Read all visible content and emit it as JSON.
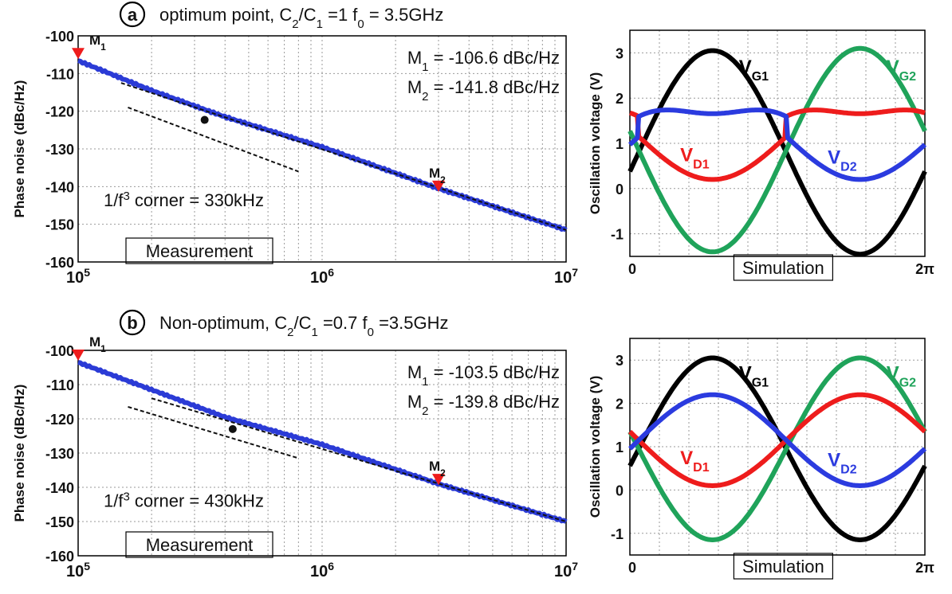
{
  "panels": [
    {
      "tag": "a",
      "header": {
        "pre": "optimum point, C",
        "s1": "2",
        "mid": "/C",
        "s2": "1",
        "post": " =1   f",
        "s3": "0",
        "end": " = 3.5GHz"
      },
      "pn": {
        "ylabel": "Phase noise (dBc/Hz)",
        "yticks": [
          "-100",
          "-110",
          "-120",
          "-130",
          "-140",
          "-150",
          "-160"
        ],
        "m1_line": {
          "pre": "M",
          "sub": "1",
          "post": " = -106.6 dBc/Hz"
        },
        "m2_line": {
          "pre": "M",
          "sub": "2",
          "post": " = -141.8 dBc/Hz"
        },
        "corner": {
          "pre": "1/f",
          "sup": "3",
          "post": " corner = 330kHz"
        },
        "marker1": {
          "pre": "M",
          "sub": "1"
        },
        "marker2": {
          "pre": "M",
          "sub": "2"
        },
        "box_label": "Measurement"
      },
      "osc": {
        "ylabel": "Oscillation voltage (V)",
        "yticks": [
          "3",
          "2",
          "1",
          "0",
          "-1"
        ],
        "xticks": [
          "0",
          "2π"
        ],
        "box_label": "Simulation",
        "labels": {
          "vg1": {
            "pre": "V",
            "sub": "G1"
          },
          "vg2": {
            "pre": "V",
            "sub": "G2"
          },
          "vd1": {
            "pre": "V",
            "sub": "D1"
          },
          "vd2": {
            "pre": "V",
            "sub": "D2"
          }
        }
      }
    },
    {
      "tag": "b",
      "header": {
        "pre": "Non-optimum, C",
        "s1": "2",
        "mid": "/C",
        "s2": "1",
        "post": " =0.7  f",
        "s3": "0",
        "end": " =3.5GHz"
      },
      "pn": {
        "ylabel": "Phase noise (dBc/Hz)",
        "yticks": [
          "-100",
          "-110",
          "-120",
          "-130",
          "-140",
          "-150",
          "-160"
        ],
        "m1_line": {
          "pre": "M",
          "sub": "1",
          "post": " = -103.5 dBc/Hz"
        },
        "m2_line": {
          "pre": "M",
          "sub": "2",
          "post": " = -139.8 dBc/Hz"
        },
        "corner": {
          "pre": "1/f",
          "sup": "3",
          "post": " corner = 430kHz"
        },
        "marker1": {
          "pre": "M",
          "sub": "1"
        },
        "marker2": {
          "pre": "M",
          "sub": "2"
        },
        "box_label": "Measurement"
      },
      "osc": {
        "ylabel": "Oscillation voltage (V)",
        "yticks": [
          "3",
          "2",
          "1",
          "0",
          "-1"
        ],
        "xticks": [
          "0",
          "2π"
        ],
        "box_label": "Simulation",
        "labels": {
          "vg1": {
            "pre": "V",
            "sub": "G1"
          },
          "vg2": {
            "pre": "V",
            "sub": "G2"
          },
          "vd1": {
            "pre": "V",
            "sub": "D1"
          },
          "vd2": {
            "pre": "V",
            "sub": "D2"
          }
        }
      }
    }
  ],
  "colors": {
    "measured": "#2b3bd6",
    "fit": "#111111",
    "marker": "#ee1c1c",
    "vg1": "#000000",
    "vg2": "#1fa35a",
    "vd1": "#ee1c1c",
    "vd2": "#2b3bdf"
  },
  "chart_data": [
    {
      "type": "line",
      "x_scale": "log",
      "xlim": [
        100000,
        10000000
      ],
      "ylim": [
        -160,
        -100
      ],
      "xtick_labels": [
        {
          "base": "10",
          "exp": "5"
        },
        {
          "base": "10",
          "exp": "6"
        },
        {
          "base": "10",
          "exp": "7"
        }
      ],
      "measured": {
        "x": [
          100000,
          200000,
          400000,
          1000000,
          3000000,
          10000000
        ],
        "y": [
          -106.6,
          -114.5,
          -121.5,
          -129.5,
          -140.5,
          -151.5
        ]
      },
      "flicker_fit": {
        "x": [
          160000,
          800000
        ],
        "y": [
          -119,
          -136
        ]
      },
      "thermal_fit": {
        "x": [
          150000,
          10000000
        ],
        "y": [
          -112.5,
          -151.5
        ]
      },
      "corner": {
        "x": 330000,
        "y": -122.3
      },
      "markers": [
        {
          "x": 100000,
          "y": -106.6
        },
        {
          "x": 3000000,
          "y": -141.8
        }
      ]
    },
    {
      "type": "line",
      "x_period": "2π",
      "xlim": [
        0,
        6.283
      ],
      "ylim": [
        -1.5,
        3.5
      ],
      "series": [
        {
          "key": "vg1",
          "offset": 0.8,
          "amp": 2.25,
          "peak_at": 0.28,
          "flat": 0
        },
        {
          "key": "vg2",
          "offset": 0.85,
          "amp": 2.25,
          "peak_at": 0.78,
          "flat": 0
        },
        {
          "key": "vd1",
          "offset": 1.15,
          "amp": 0.95,
          "peak_at": 0.78,
          "flat": 0.85
        },
        {
          "key": "vd2",
          "offset": 1.15,
          "amp": 0.95,
          "peak_at": 0.28,
          "flat": 0.85
        }
      ]
    },
    {
      "type": "line",
      "x_scale": "log",
      "xlim": [
        100000,
        10000000
      ],
      "ylim": [
        -160,
        -100
      ],
      "xtick_labels": [
        {
          "base": "10",
          "exp": "5"
        },
        {
          "base": "10",
          "exp": "6"
        },
        {
          "base": "10",
          "exp": "7"
        }
      ],
      "measured": {
        "x": [
          100000,
          200000,
          400000,
          1000000,
          3000000,
          10000000
        ],
        "y": [
          -103.5,
          -111.5,
          -119.5,
          -127.5,
          -139.0,
          -150.0
        ]
      },
      "flicker_fit": {
        "x": [
          160000,
          800000
        ],
        "y": [
          -116.5,
          -131.5
        ]
      },
      "thermal_fit": {
        "x": [
          200000,
          10000000
        ],
        "y": [
          -114,
          -150
        ]
      },
      "corner": {
        "x": 430000,
        "y": -123
      },
      "markers": [
        {
          "x": 100000,
          "y": -103.5
        },
        {
          "x": 3000000,
          "y": -139.8
        }
      ]
    },
    {
      "type": "line",
      "x_period": "2π",
      "xlim": [
        0,
        6.283
      ],
      "ylim": [
        -1.5,
        3.5
      ],
      "series": [
        {
          "key": "vg1",
          "offset": 0.95,
          "amp": 2.1,
          "peak_at": 0.28,
          "flat": 0
        },
        {
          "key": "vg2",
          "offset": 0.95,
          "amp": 2.1,
          "peak_at": 0.78,
          "flat": 0
        },
        {
          "key": "vd1",
          "offset": 1.15,
          "amp": 1.05,
          "peak_at": 0.78,
          "flat": 0
        },
        {
          "key": "vd2",
          "offset": 1.15,
          "amp": 1.05,
          "peak_at": 0.28,
          "flat": 0
        }
      ]
    }
  ]
}
